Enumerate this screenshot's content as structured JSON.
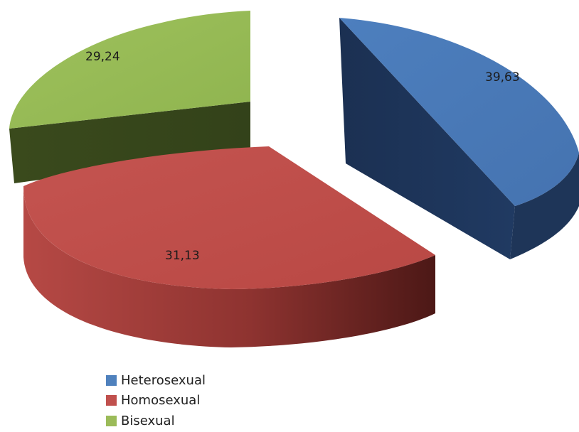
{
  "chart_data": {
    "type": "pie",
    "style": "3d-exploded",
    "decimal_separator": ",",
    "slices": [
      {
        "label": "Heterosexual",
        "value": 39.63,
        "display": "39,63",
        "color": "#4f81bd"
      },
      {
        "label": "Homosexual",
        "value": 31.13,
        "display": "31,13",
        "color": "#c0504d"
      },
      {
        "label": "Bisexual",
        "value": 29.24,
        "display": "29,24",
        "color": "#9bbb59"
      }
    ],
    "legend_position": "bottom"
  },
  "legend": {
    "items": [
      {
        "label": "Heterosexual",
        "color": "#4f81bd"
      },
      {
        "label": "Homosexual",
        "color": "#c0504d"
      },
      {
        "label": "Bisexual",
        "color": "#9bbb59"
      }
    ]
  }
}
